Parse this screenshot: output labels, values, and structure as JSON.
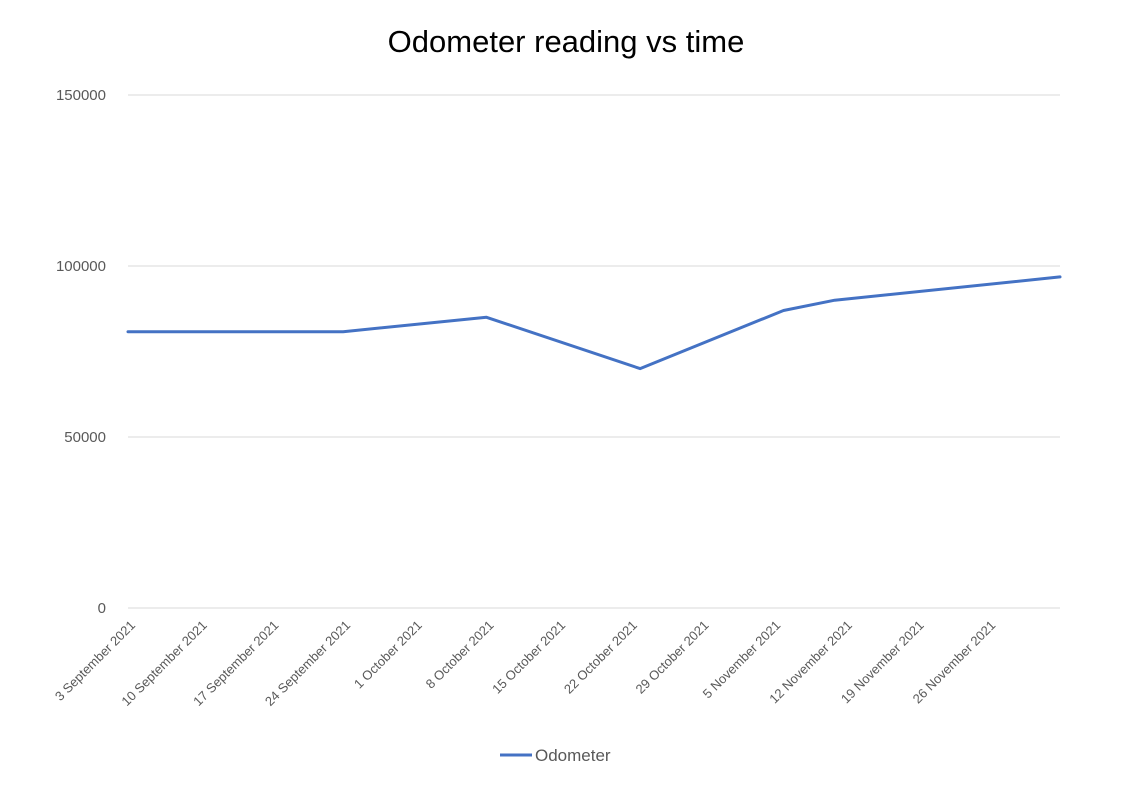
{
  "chart_data": {
    "type": "line",
    "title": "Odometer reading vs time",
    "xlabel": "",
    "ylabel": "",
    "x_ticks": [
      "3 September 2021",
      "10 September 2021",
      "17 September 2021",
      "24 September 2021",
      "1 October 2021",
      "8 October 2021",
      "15 October 2021",
      "22 October 2021",
      "29 October 2021",
      "5 November 2021",
      "12 November 2021",
      "19 November 2021",
      "26 November 2021"
    ],
    "xlim": [
      "2021-09-03",
      "2021-12-03"
    ],
    "ylim": [
      0,
      150000
    ],
    "y_ticks": [
      0,
      50000,
      100000,
      150000
    ],
    "y_tick_labels": [
      "0",
      "50000",
      "100000",
      "150000"
    ],
    "grid": true,
    "legend_position": "bottom",
    "series": [
      {
        "name": "Odometer",
        "color": "#4472c4",
        "points": [
          {
            "x": "2021-09-03",
            "y": 80800
          },
          {
            "x": "2021-09-24",
            "y": 80800
          },
          {
            "x": "2021-10-08",
            "y": 85000
          },
          {
            "x": "2021-10-23",
            "y": 70000
          },
          {
            "x": "2021-11-06",
            "y": 87000
          },
          {
            "x": "2021-11-11",
            "y": 90000
          },
          {
            "x": "2021-12-03",
            "y": 96800
          }
        ]
      }
    ]
  }
}
